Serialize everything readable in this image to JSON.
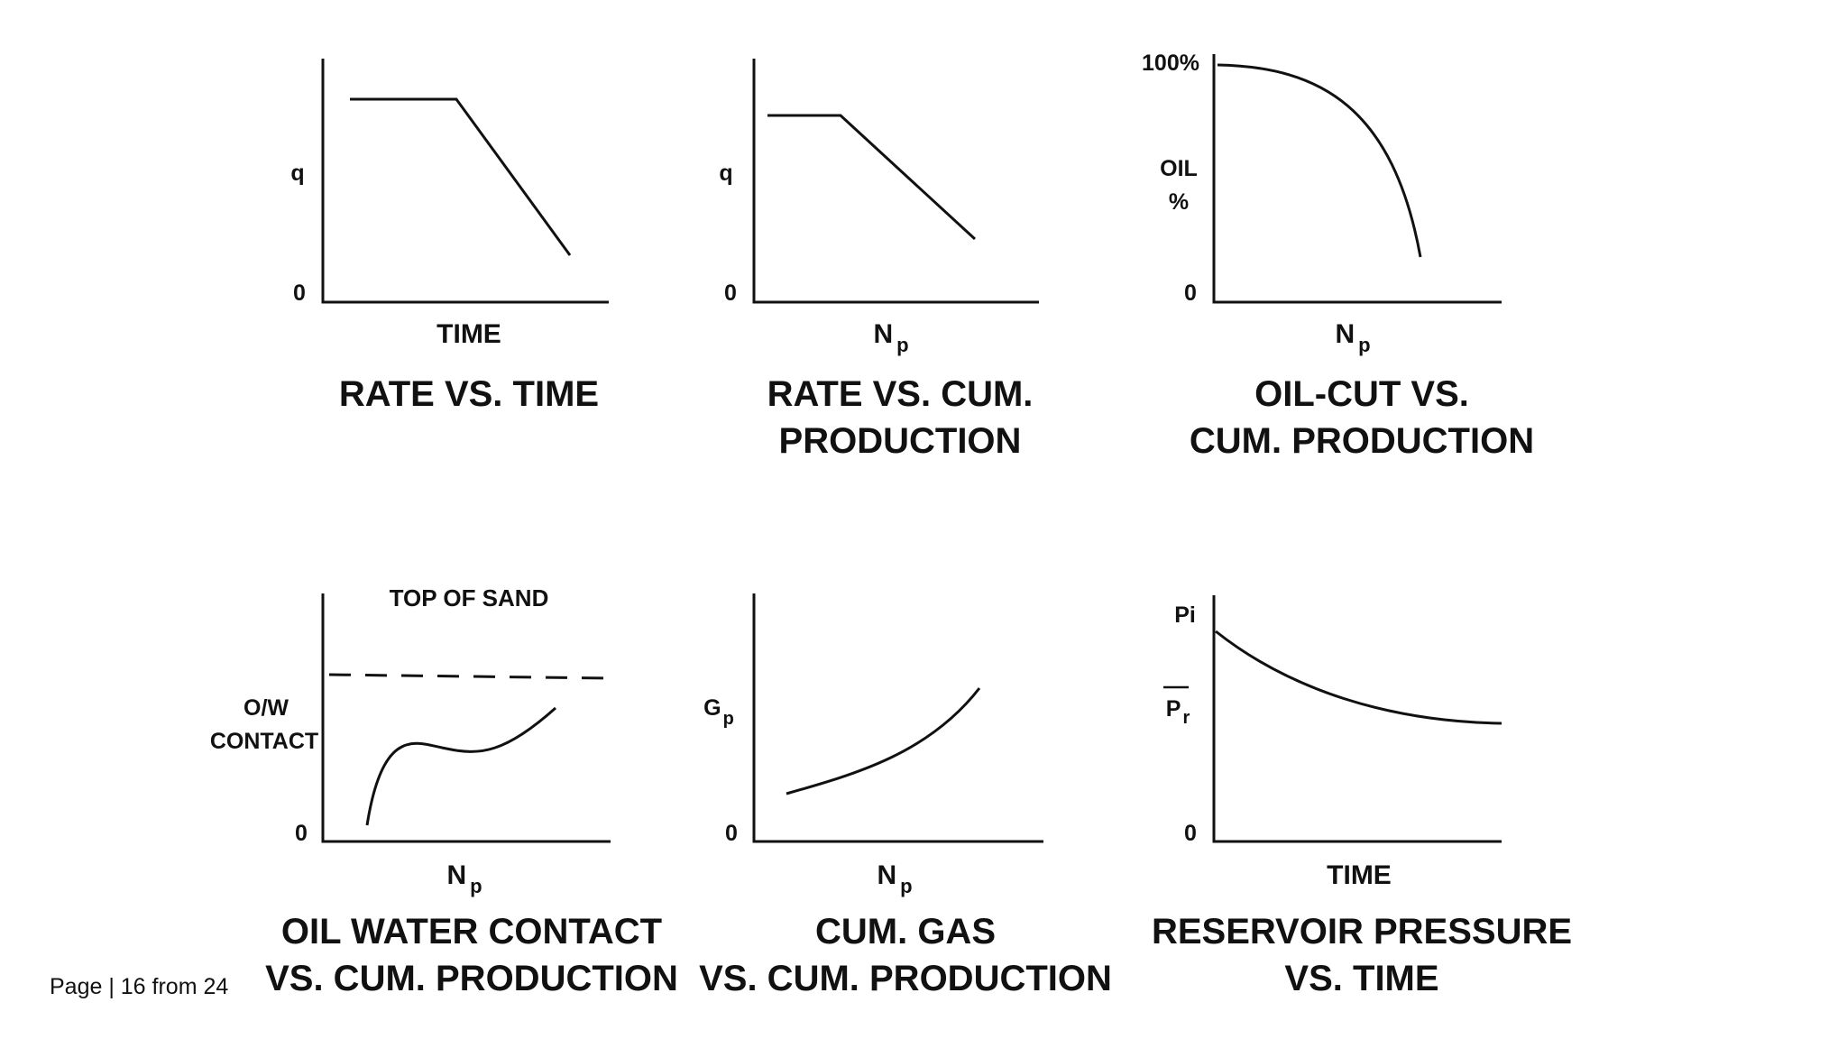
{
  "footer": {
    "page_label": "Page | 16 from 24"
  },
  "panels": [
    {
      "id": "rate-vs-time",
      "y_label": "q",
      "y_zero": "0",
      "x_label": "TIME",
      "x_sub": "",
      "title_lines": [
        "RATE VS. TIME"
      ]
    },
    {
      "id": "rate-vs-cum-production",
      "y_label": "q",
      "y_zero": "0",
      "x_label": "N",
      "x_sub": "p",
      "title_lines": [
        "RATE VS. CUM.",
        "PRODUCTION"
      ]
    },
    {
      "id": "oil-cut-vs-cum-production",
      "y_top": "100%",
      "y_label_lines": [
        "OIL",
        "%"
      ],
      "y_zero": "0",
      "x_label": "N",
      "x_sub": "p",
      "title_lines": [
        "OIL-CUT VS.",
        "CUM. PRODUCTION"
      ]
    },
    {
      "id": "oil-water-contact-vs-cum-production",
      "top_label": "TOP OF SAND",
      "y_label_lines": [
        "O/W",
        "CONTACT"
      ],
      "y_zero": "0",
      "x_label": "N",
      "x_sub": "p",
      "title_lines": [
        "OIL WATER CONTACT",
        "VS. CUM. PRODUCTION"
      ]
    },
    {
      "id": "cum-gas-vs-cum-production",
      "y_label": "G",
      "y_sub": "p",
      "y_zero": "0",
      "x_label": "N",
      "x_sub": "p",
      "title_lines": [
        "CUM. GAS",
        "VS. CUM. PRODUCTION"
      ]
    },
    {
      "id": "reservoir-pressure-vs-time",
      "y_top": "Pi",
      "y_mid": "P",
      "y_mid_sub": "r",
      "y_zero": "0",
      "x_label": "TIME",
      "x_sub": "",
      "title_lines": [
        "RESERVOIR PRESSURE",
        "VS. TIME"
      ]
    }
  ]
}
